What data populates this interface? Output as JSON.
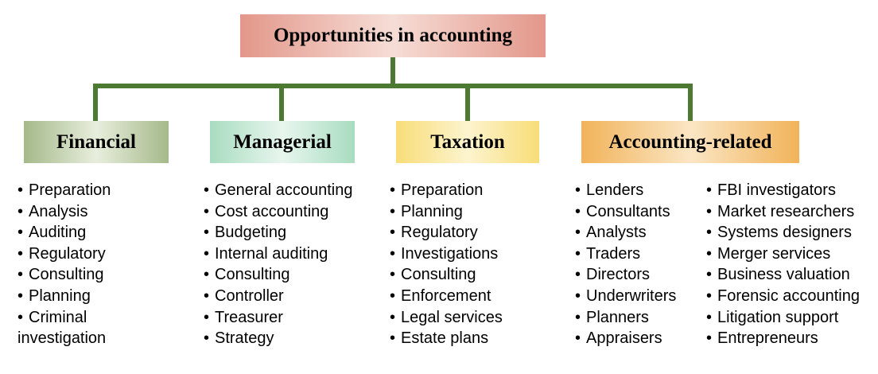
{
  "root": {
    "label": "Opportunities in accounting"
  },
  "colors": {
    "connector": "#4d7a32",
    "root_fill": "#e3978a",
    "financial_fill": "#a5b98a",
    "managerial_fill": "#a8dcc0",
    "taxation_fill": "#f8dd78",
    "accounting_related_fill": "#f1b35a"
  },
  "categories": [
    {
      "label": "Financial",
      "items": [
        "Preparation",
        "Analysis",
        "Auditing",
        "Regulatory",
        "Consulting",
        "Planning",
        "Criminal investigation"
      ]
    },
    {
      "label": "Managerial",
      "items": [
        "General accounting",
        "Cost accounting",
        "Budgeting",
        "Internal auditing",
        "Consulting",
        "Controller",
        "Treasurer",
        "Strategy"
      ]
    },
    {
      "label": "Taxation",
      "items": [
        "Preparation",
        "Planning",
        "Regulatory",
        "Investigations",
        "Consulting",
        "Enforcement",
        "Legal services",
        "Estate plans"
      ]
    },
    {
      "label": "Accounting-related",
      "items_col1": [
        "Lenders",
        "Consultants",
        "Analysts",
        "Traders",
        "Directors",
        "Underwriters",
        "Planners",
        "Appraisers"
      ],
      "items_col2": [
        "FBI investigators",
        "Market researchers",
        "Systems designers",
        "Merger services",
        "Business valuation",
        "Forensic accounting",
        "Litigation support",
        "Entrepreneurs"
      ]
    }
  ]
}
